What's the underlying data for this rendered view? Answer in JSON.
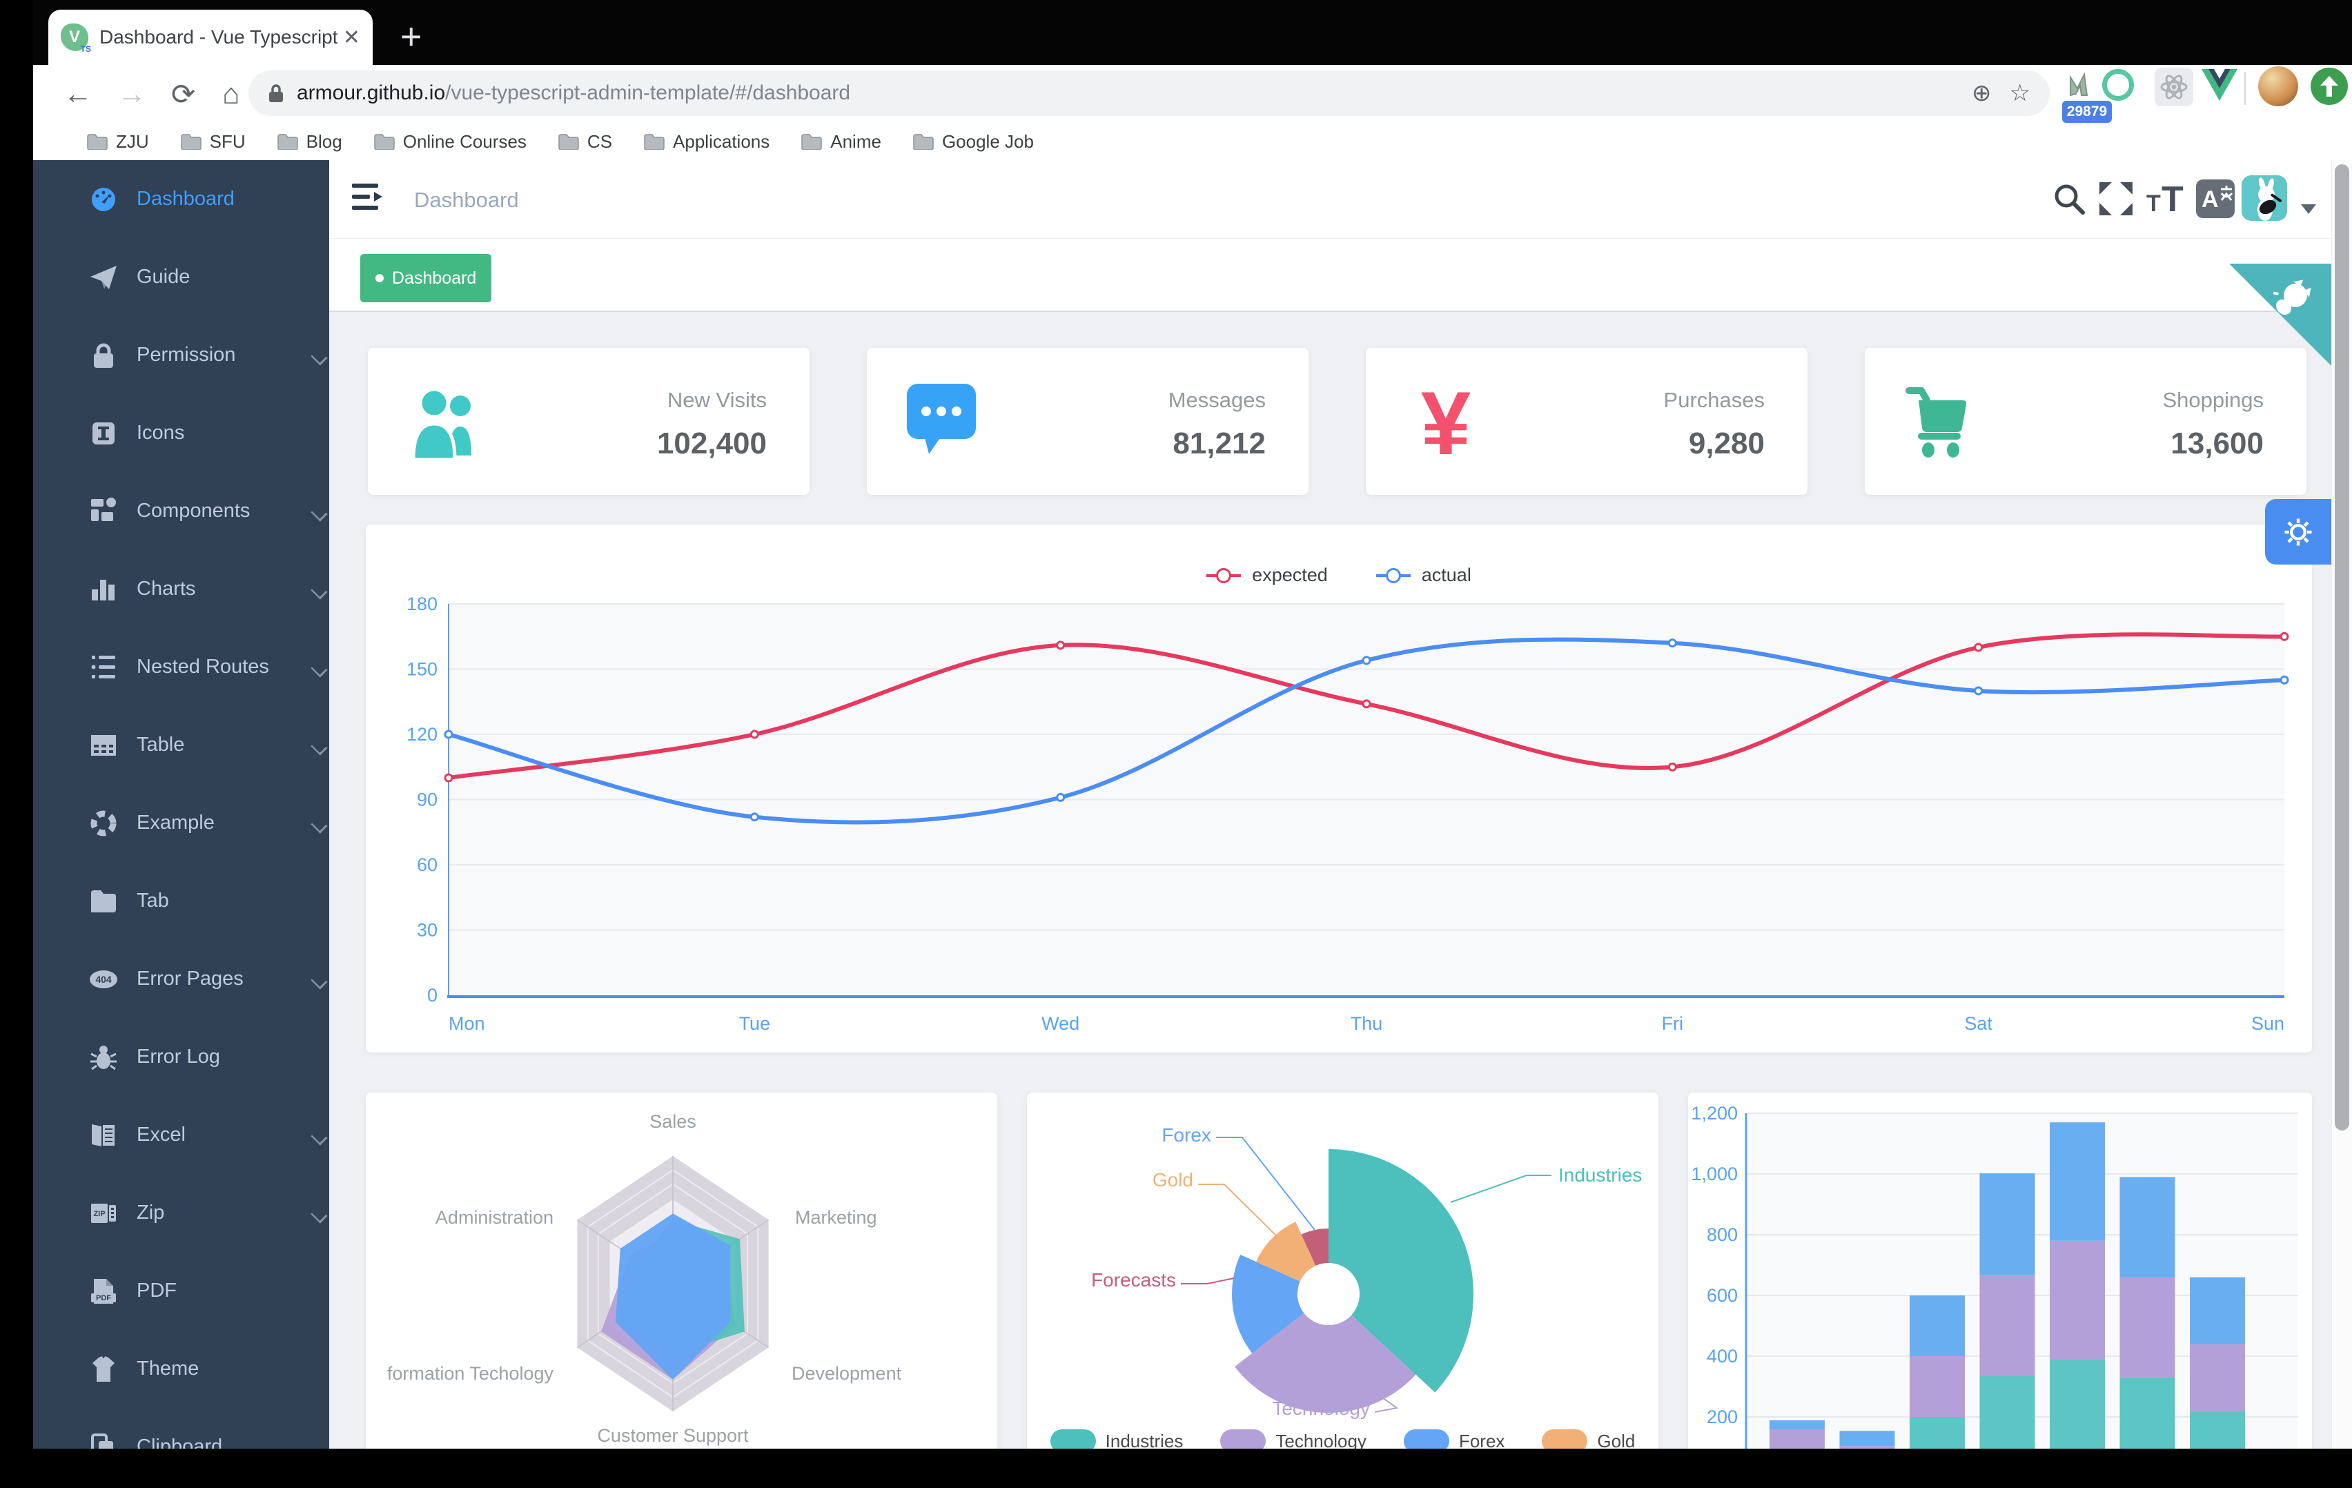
{
  "browser": {
    "tab": {
      "title": "Dashboard - Vue Typescript Ad",
      "favicon_letter": "V",
      "favicon_sub": "TS",
      "close_glyph": "✕"
    },
    "new_tab_glyph": "+",
    "nav_icons": {
      "back": "←",
      "forward": "→",
      "reload": "⟳",
      "home": "⌂"
    },
    "url": {
      "host": "armour.github.io",
      "path": "/vue-typescript-admin-template/#/dashboard"
    },
    "pill_actions": {
      "zoom_glyph": "⊕",
      "bookmark_glyph": "☆"
    },
    "extensions": {
      "badge_count": "29879"
    },
    "bookmarks": [
      "ZJU",
      "SFU",
      "Blog",
      "Online Courses",
      "CS",
      "Applications",
      "Anime",
      "Google Job"
    ]
  },
  "sidebar": {
    "items": [
      {
        "label": "Dashboard",
        "icon": "dashboard",
        "arrow": false,
        "active": true
      },
      {
        "label": "Guide",
        "icon": "guide",
        "arrow": false,
        "active": false
      },
      {
        "label": "Permission",
        "icon": "lock",
        "arrow": true,
        "active": false
      },
      {
        "label": "Icons",
        "icon": "icons",
        "arrow": false,
        "active": false
      },
      {
        "label": "Components",
        "icon": "components",
        "arrow": true,
        "active": false
      },
      {
        "label": "Charts",
        "icon": "charts",
        "arrow": true,
        "active": false
      },
      {
        "label": "Nested Routes",
        "icon": "nested",
        "arrow": true,
        "active": false
      },
      {
        "label": "Table",
        "icon": "table",
        "arrow": true,
        "active": false
      },
      {
        "label": "Example",
        "icon": "example",
        "arrow": true,
        "active": false
      },
      {
        "label": "Tab",
        "icon": "tab",
        "arrow": false,
        "active": false
      },
      {
        "label": "Error Pages",
        "icon": "error-pages",
        "arrow": true,
        "active": false
      },
      {
        "label": "Error Log",
        "icon": "bug",
        "arrow": false,
        "active": false
      },
      {
        "label": "Excel",
        "icon": "excel",
        "arrow": true,
        "active": false
      },
      {
        "label": "Zip",
        "icon": "zip",
        "arrow": true,
        "active": false
      },
      {
        "label": "PDF",
        "icon": "pdf",
        "arrow": false,
        "active": false
      },
      {
        "label": "Theme",
        "icon": "theme",
        "arrow": false,
        "active": false
      },
      {
        "label": "Clipboard",
        "icon": "clipboard",
        "arrow": false,
        "active": false
      }
    ]
  },
  "navbar": {
    "breadcrumb": "Dashboard"
  },
  "tags": [
    {
      "label": "Dashboard",
      "active": true
    }
  ],
  "stats": [
    {
      "icon": "people",
      "color": "#40c9c6",
      "label": "New Visits",
      "value": "102,400"
    },
    {
      "icon": "message",
      "color": "#36a3f7",
      "label": "Messages",
      "value": "81,212"
    },
    {
      "icon": "money",
      "color": "#f4516c",
      "label": "Purchases",
      "value": "9,280"
    },
    {
      "icon": "cart",
      "color": "#3fb794",
      "label": "Shoppings",
      "value": "13,600"
    }
  ],
  "chart_data": [
    {
      "type": "line",
      "categories": [
        "Mon",
        "Tue",
        "Wed",
        "Thu",
        "Fri",
        "Sat",
        "Sun"
      ],
      "series": [
        {
          "name": "expected",
          "color": "#e6395f",
          "values": [
            100,
            120,
            161,
            134,
            105,
            160,
            165
          ]
        },
        {
          "name": "actual",
          "color": "#4a8df5",
          "values": [
            120,
            82,
            91,
            154,
            162,
            140,
            145
          ]
        }
      ],
      "ylim": [
        0,
        180
      ],
      "yticks": [
        0,
        30,
        60,
        90,
        120,
        150,
        180
      ],
      "legend_position": "top",
      "grid": true
    },
    {
      "type": "radar",
      "indicators": [
        "Sales",
        "Marketing",
        "Development",
        "Customer Support",
        "formation Techology",
        "Administration"
      ],
      "max": [
        10000,
        20000,
        20000,
        20000,
        20000,
        20000
      ],
      "series": [
        {
          "name": "purple",
          "color": "#b3a0d8",
          "values": [
            4000,
            11000,
            13000,
            15000,
            15000,
            9000
          ]
        },
        {
          "name": "teal",
          "color": "#54c0bb",
          "values": [
            5000,
            14000,
            15000,
            11000,
            12000,
            7000
          ]
        },
        {
          "name": "blue",
          "color": "#64a5f5",
          "values": [
            5500,
            12000,
            12000,
            15000,
            12000,
            11000
          ]
        }
      ]
    },
    {
      "type": "pie",
      "subtype": "rose",
      "series": [
        {
          "name": "Industries",
          "value": 320,
          "color": "#4dbfbc"
        },
        {
          "name": "Technology",
          "value": 240,
          "color": "#b3a0d8"
        },
        {
          "name": "Forex",
          "value": 149,
          "color": "#64a5f5"
        },
        {
          "name": "Gold",
          "value": 100,
          "color": "#f2b077"
        },
        {
          "name": "Forecasts",
          "value": 59,
          "color": "#c2607a"
        }
      ],
      "legend_visible": [
        "Industries",
        "Technology",
        "Forex",
        "Gold"
      ],
      "legend_position": "bottom"
    },
    {
      "type": "bar",
      "stacked": true,
      "series": [
        {
          "name": "teal",
          "color": "#5bc6c3",
          "values": [
            79,
            52,
            200,
            334,
            390,
            330,
            220
          ]
        },
        {
          "name": "purple",
          "color": "#b3a0d8",
          "values": [
            80,
            52,
            200,
            334,
            390,
            330,
            220
          ]
        },
        {
          "name": "blue",
          "color": "#6aaef2",
          "values": [
            30,
            50,
            200,
            334,
            390,
            330,
            220
          ]
        }
      ],
      "yticks": [
        "200",
        "400",
        "600",
        "800",
        "1,000",
        "1,200"
      ]
    }
  ],
  "colors": {
    "sidebar_bg": "#304156",
    "sidebar_text": "#bfcbd9",
    "active_blue": "#409eff",
    "tag_green": "#42b983",
    "content_bg": "#eef0f4",
    "axis_blue": "#57a3f3",
    "ribbon_teal": "#4db5bb",
    "gear_blue": "#4a8df0",
    "avatar_teal": "#5fc6c9"
  }
}
